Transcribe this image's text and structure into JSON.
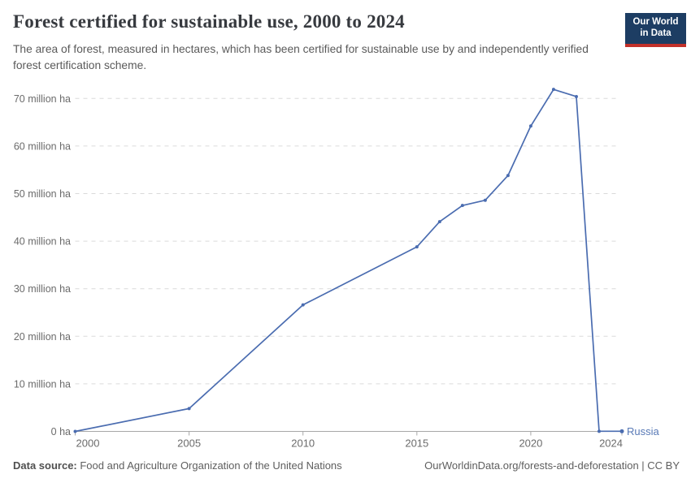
{
  "header": {
    "title": "Forest certified for sustainable use, 2000 to 2024",
    "subtitle": "The area of forest, measured in hectares, which has been certified for sustainable use by and independently verified forest certification scheme.",
    "logo": {
      "line1": "Our World",
      "line2": "in Data",
      "bg_color": "#1d3d63",
      "accent_color": "#c2302a"
    }
  },
  "chart_data": {
    "type": "line",
    "title": "Forest certified for sustainable use, 2000 to 2024",
    "xlabel": "",
    "ylabel": "",
    "unit": "million ha",
    "x": [
      2000,
      2005,
      2010,
      2015,
      2016,
      2017,
      2018,
      2019,
      2020,
      2021,
      2022,
      2023,
      2024
    ],
    "series": [
      {
        "name": "Russia",
        "color": "#4a6cb0",
        "label_color": "#5879b6",
        "values": [
          0,
          4.8,
          26.6,
          38.8,
          44.1,
          47.5,
          48.6,
          53.8,
          64.2,
          71.9,
          70.4,
          0.03,
          0.03
        ]
      }
    ],
    "xlim": [
      2000,
      2024
    ],
    "ylim": [
      0,
      70
    ],
    "yticks": [
      0,
      10,
      20,
      30,
      40,
      50,
      60,
      70
    ],
    "ytick_labels": [
      "0 ha",
      "10 million ha",
      "20 million ha",
      "30 million ha",
      "40 million ha",
      "50 million ha",
      "60 million ha",
      "70 million ha"
    ],
    "xticks": [
      2000,
      2005,
      2010,
      2015,
      2020,
      2024
    ],
    "xtick_labels": [
      "2000",
      "2005",
      "2010",
      "2015",
      "2020",
      "2024"
    ],
    "grid": "horizontal-dashed",
    "legend_position": "end-of-line-label"
  },
  "footer": {
    "source_label": "Data source:",
    "source_text": " Food and Agriculture Organization of the United Nations",
    "attribution": "OurWorldinData.org/forests-and-deforestation | CC BY"
  },
  "colors": {
    "background": "#ffffff",
    "title_text": "#373a3f",
    "subtitle_text": "#5a5a5a",
    "tick_text": "#6b6b6b",
    "gridline": "#dadada",
    "axis_line": "#a8a8a8",
    "series_blue": "#4a6cb0"
  }
}
